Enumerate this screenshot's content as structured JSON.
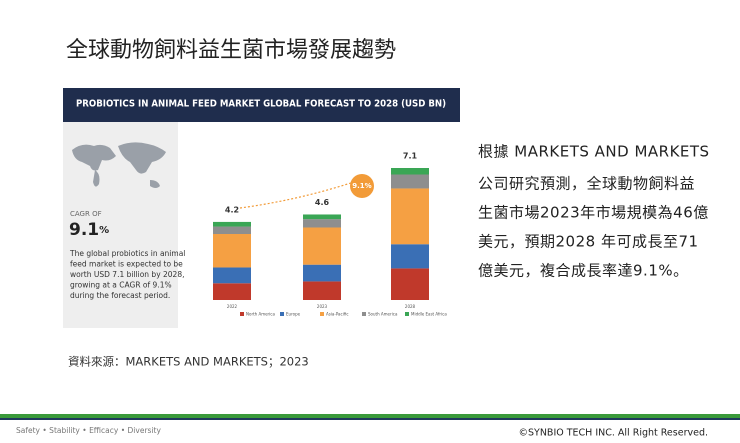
{
  "title": "全球動物飼料益生菌市場發展趨勢",
  "figure": {
    "banner": "PROBIOTICS IN ANIMAL FEED MARKET GLOBAL FORECAST TO 2028 (USD BN)",
    "cagr_label": "CAGR OF",
    "cagr_value": "9.1",
    "cagr_unit": "%",
    "description": [
      "The global probiotics in animal",
      "feed market is expected to be",
      "worth USD 7.1 billion by 2028,",
      "growing at a CAGR of 9.1%",
      "during the forecast period."
    ],
    "chart_data": {
      "type": "bar",
      "stacked": true,
      "categories": [
        "2022",
        "2023",
        "2028"
      ],
      "series": [
        {
          "name": "North America",
          "color": "#c0392b",
          "values": [
            0.9,
            1.0,
            1.7
          ]
        },
        {
          "name": "Europe",
          "color": "#3a6fb5",
          "values": [
            0.85,
            0.9,
            1.3
          ]
        },
        {
          "name": "Asia-Pacific",
          "color": "#f5a043",
          "values": [
            1.8,
            2.0,
            3.0
          ]
        },
        {
          "name": "South America",
          "color": "#8e8e8e",
          "values": [
            0.4,
            0.45,
            0.75
          ]
        },
        {
          "name": "Middle East Africa",
          "color": "#3aa655",
          "values": [
            0.25,
            0.25,
            0.35
          ]
        }
      ],
      "totals": [
        "4.2",
        "4.6",
        "7.1"
      ],
      "annotation": "9.1%"
    }
  },
  "body": [
    "根據 MARKETS AND MARKETS",
    "公司研究預測，全球動物飼料益",
    "生菌市場2023年市場規模為46億",
    "美元，預期2028  年可成長至71",
    "億美元，複合成長率達9.1%。"
  ],
  "source": "資料來源：MARKETS AND MARKETS；2023",
  "footer": {
    "tagline": "Safety • Stability • Efficacy • Diversity",
    "copyright": "©SYNBIO TECH INC. All Right Reserved."
  }
}
